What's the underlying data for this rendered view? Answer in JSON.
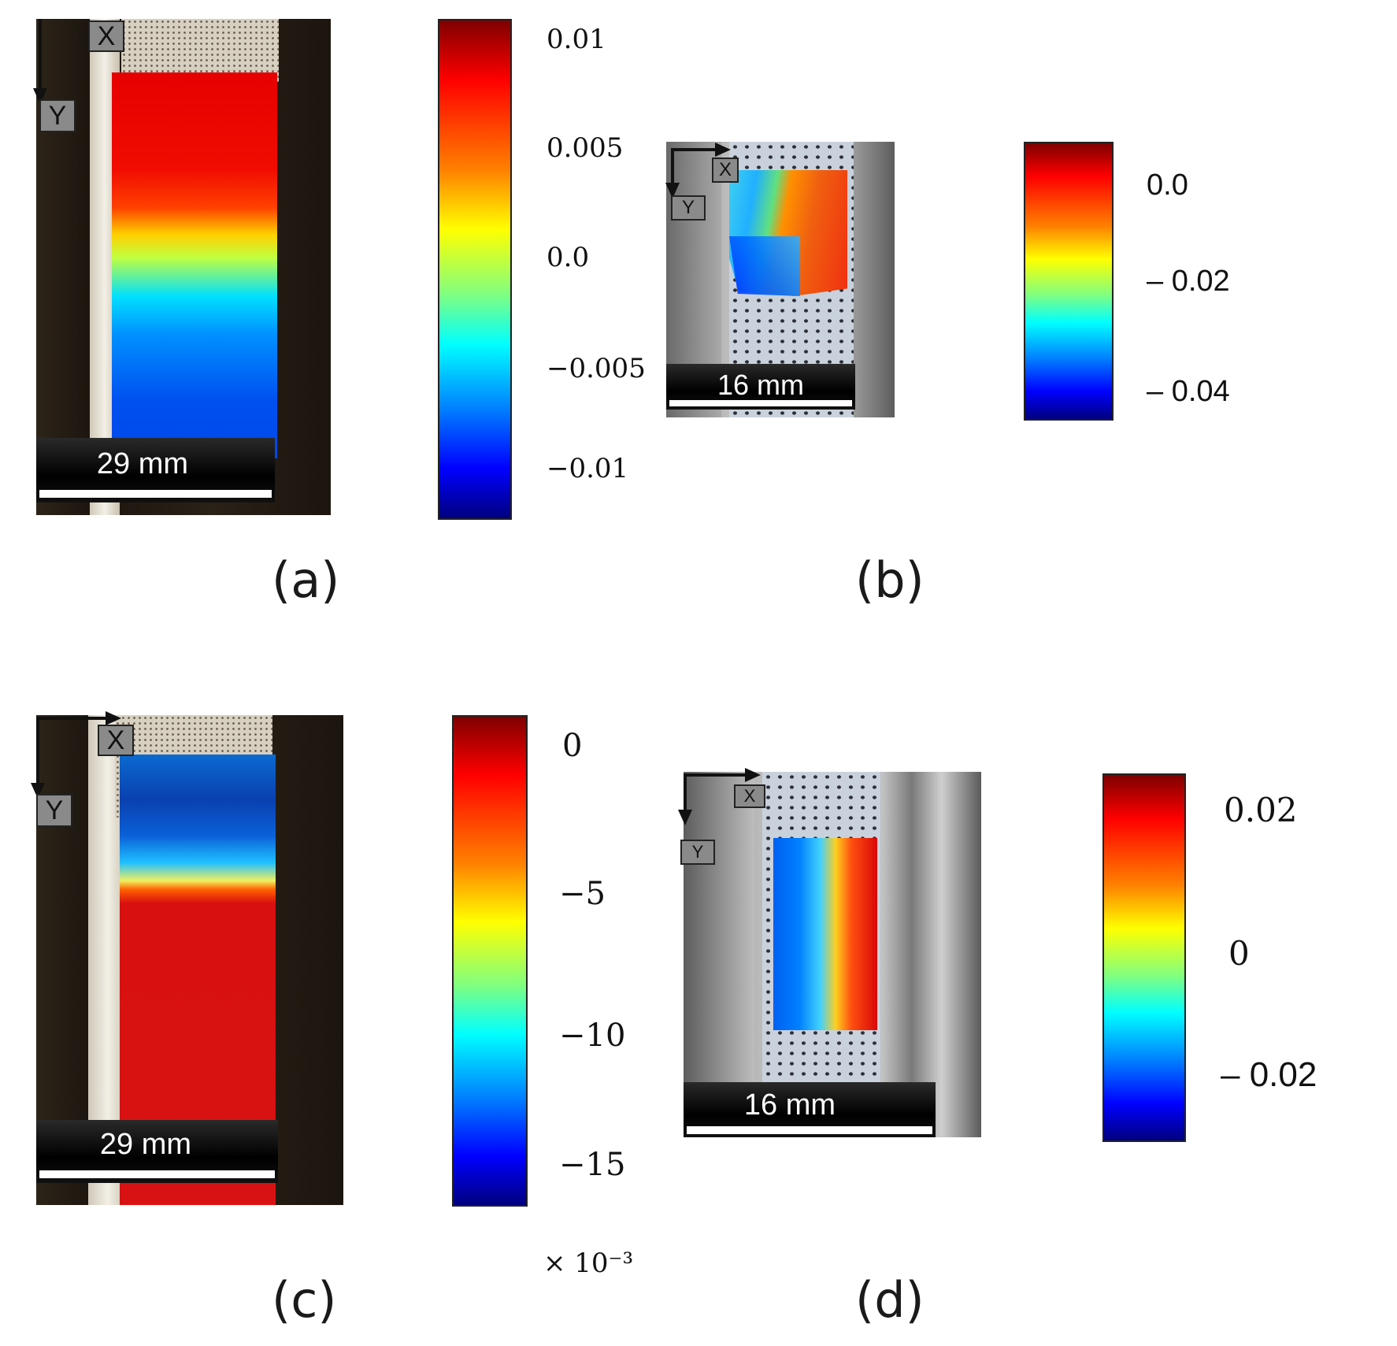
{
  "panels": {
    "a": {
      "label": "(a)",
      "axis_x": "X",
      "axis_y": "Y",
      "scale": "29 mm",
      "colorbar_ticks": [
        "0.01",
        "0.005",
        "0.0",
        "−0.005",
        "−0.01"
      ]
    },
    "b": {
      "label": "(b)",
      "axis_x": "X",
      "axis_y": "Y",
      "scale": "16 mm",
      "colorbar_ticks": [
        "0.0",
        "– 0.02",
        "– 0.04"
      ]
    },
    "c": {
      "label": "(c)",
      "axis_x": "X",
      "axis_y": "Y",
      "scale": "29 mm",
      "colorbar_ticks": [
        "0",
        "−5",
        "−10",
        "−15"
      ],
      "colorbar_multiplier": "× 10⁻³"
    },
    "d": {
      "label": "(d)",
      "axis_x": "X",
      "axis_y": "Y",
      "scale": "16 mm",
      "colorbar_ticks": [
        "0.02",
        "0",
        "– 0.02"
      ]
    }
  },
  "colormap": "jet"
}
